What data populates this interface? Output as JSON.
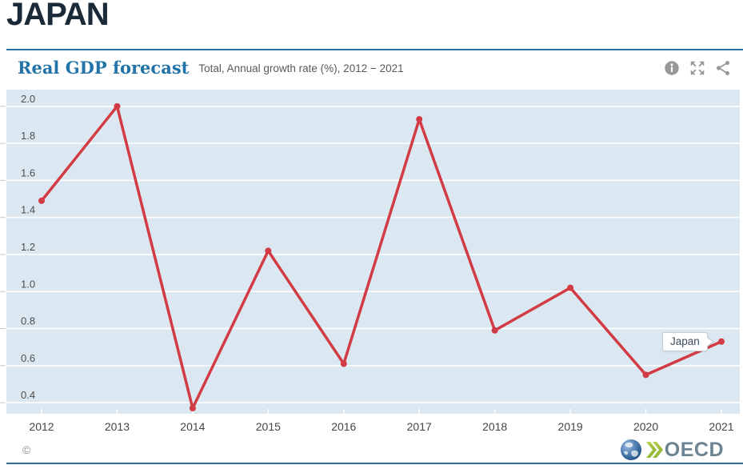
{
  "page": {
    "title": "JAPAN"
  },
  "widget": {
    "title": "Real GDP forecast",
    "subtitle": "Total, Annual growth rate (%), 2012 − 2021",
    "toolbar": {
      "info_icon": "info-circle",
      "fullscreen_icon": "expand-arrows",
      "share_icon": "share-nodes"
    },
    "footer": {
      "copyright": "©",
      "logo_text": "OECD"
    }
  },
  "tooltip": {
    "label": "Japan"
  },
  "colors": {
    "heading_text": "#1b2a38",
    "accent_blue": "#2173a8",
    "line_red": "#d23b44",
    "plot_background": "#dce8f1",
    "gridline": "#ffffff",
    "axis_label": "#4e4e4e",
    "rule_top": "#2472a2",
    "rule_bottom": "#2e6d8e"
  },
  "chart_data": {
    "type": "line",
    "title": "Real GDP forecast",
    "subtitle": "Total, Annual growth rate (%), 2012 − 2021",
    "categories": [
      "2012",
      "2013",
      "2014",
      "2015",
      "2016",
      "2017",
      "2018",
      "2019",
      "2020",
      "2021"
    ],
    "series": [
      {
        "name": "Japan",
        "color": "#d23b44",
        "values": [
          1.49,
          2.0,
          0.37,
          1.22,
          0.61,
          1.93,
          0.79,
          1.02,
          0.55,
          0.73
        ]
      }
    ],
    "yticks": [
      0.4,
      0.6,
      0.8,
      1.0,
      1.2,
      1.4,
      1.6,
      1.8,
      2.0
    ],
    "ylim": [
      0.34,
      2.09
    ],
    "xlabel": "",
    "ylabel": "",
    "grid": true,
    "legend": "none",
    "point_label": {
      "text": "Japan",
      "attached_to": "2021"
    }
  }
}
